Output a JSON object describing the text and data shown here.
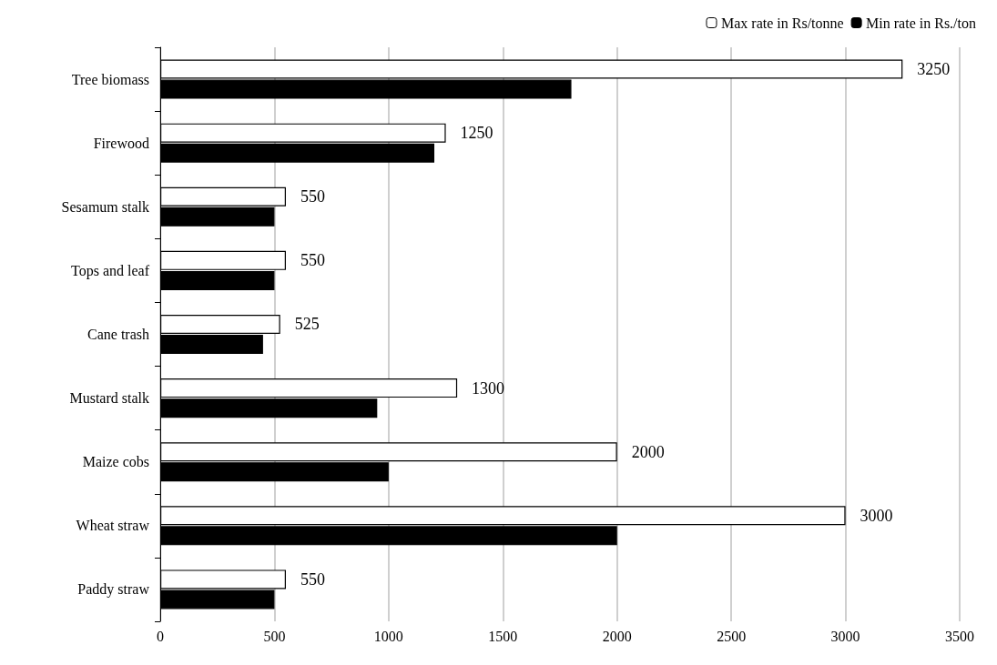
{
  "chart_data": {
    "type": "bar",
    "orientation": "horizontal",
    "categories": [
      "Tree biomass",
      "Firewood",
      "Sesamum stalk",
      "Tops and leaf",
      "Cane trash",
      "Mustard stalk",
      "Maize cobs",
      "Wheat straw",
      "Paddy straw"
    ],
    "series": [
      {
        "name": "Max rate in Rs/tonne",
        "color": "#ffffff",
        "values": [
          3250,
          1250,
          550,
          550,
          525,
          1300,
          2000,
          3000,
          550
        ],
        "value_labels": [
          "3250",
          "1250",
          "550",
          "550",
          "525",
          "1300",
          "2000",
          "3000",
          "550"
        ]
      },
      {
        "name": "Min rate in Rs./ton",
        "color": "#000000",
        "values": [
          1800,
          1200,
          500,
          500,
          450,
          950,
          1000,
          2000,
          500
        ]
      }
    ],
    "xlim": [
      0,
      3500
    ],
    "xticks": [
      0,
      500,
      1000,
      1500,
      2000,
      2500,
      3000,
      3500
    ],
    "grid": "x",
    "legend": "top right"
  }
}
